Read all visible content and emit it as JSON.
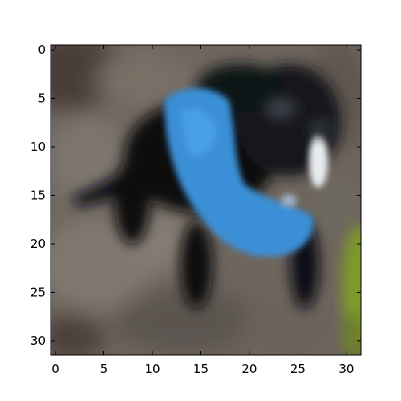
{
  "figure": {
    "x_ticks": [
      "0",
      "5",
      "10",
      "15",
      "20",
      "25",
      "30"
    ],
    "y_ticks": [
      "0",
      "5",
      "10",
      "15",
      "20",
      "25",
      "30"
    ],
    "x_range": [
      -0.5,
      31.5
    ],
    "y_range": [
      -0.5,
      31.5
    ],
    "y_axis_inverted": true,
    "image_grid": "32x32 pixelated, smoothed",
    "subject": "black dog wearing a blue vest on a brown-gray ground",
    "colors": {
      "dog": "#0c0d10",
      "vest": "#3a8fd6",
      "ground": "#6b625a",
      "foliage": "#7f9a2a"
    }
  }
}
